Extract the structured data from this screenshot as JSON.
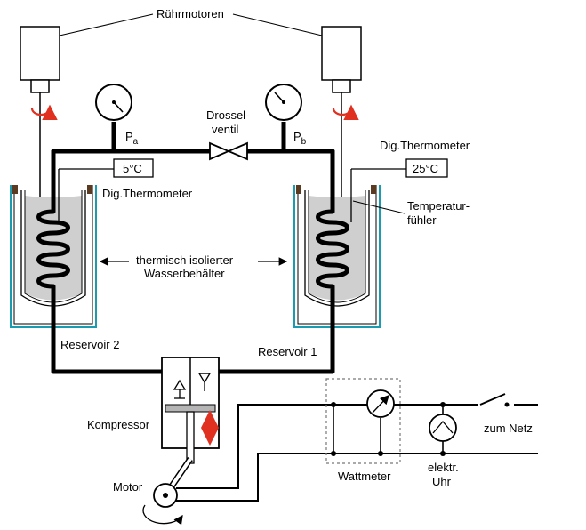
{
  "labels": {
    "stirring_motors": "Rührmotoren",
    "pa_main": "P",
    "pa_sub": "a",
    "pb_main": "P",
    "pb_sub": "b",
    "throttle_line1": "Drossel-",
    "throttle_line2": "ventil",
    "dig_thermometer_left": "Dig.Thermometer",
    "dig_thermometer_right": "Dig.Thermometer",
    "temp_left": "5°C",
    "temp_right": "25°C",
    "sensor_line1": "Temperatur-",
    "sensor_line2": "fühler",
    "insulated_line1": "thermisch isolierter",
    "insulated_line2": "Wasserbehälter",
    "reservoir_2": "Reservoir 2",
    "reservoir_1": "Reservoir 1",
    "compressor": "Kompressor",
    "motor": "Motor",
    "wattmeter": "Wattmeter",
    "clock_line1": "elektr.",
    "clock_line2": "Uhr",
    "to_grid": "zum Netz"
  },
  "colors": {
    "water": "#cfcfcf",
    "vessel_outline": "#1a9bb0",
    "arrow_red": "#e03020",
    "pipe": "#000000"
  }
}
